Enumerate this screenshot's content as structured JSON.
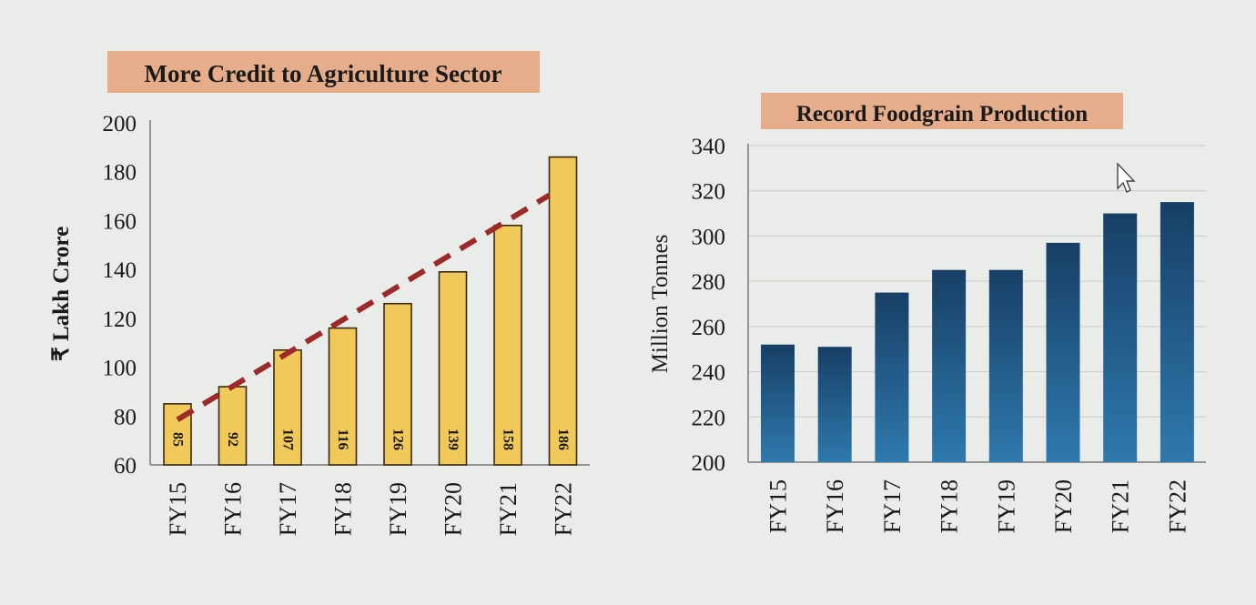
{
  "chart_data": [
    {
      "type": "bar",
      "title": "More Credit to Agriculture Sector",
      "ylabel": "₹ Lakh Crore",
      "xlabel": "",
      "categories": [
        "FY15",
        "FY16",
        "FY17",
        "FY18",
        "FY19",
        "FY20",
        "FY21",
        "FY22"
      ],
      "values": [
        85,
        92,
        107,
        116,
        126,
        139,
        158,
        186
      ],
      "data_labels": [
        "85",
        "92",
        "107",
        "116",
        "126",
        "139",
        "158",
        "186"
      ],
      "ylim": [
        60,
        200
      ],
      "yticks": [
        "60",
        "80",
        "100",
        "120",
        "140",
        "160",
        "180",
        "200"
      ],
      "trendline": {
        "style": "dashed",
        "color": "#9c2a2a"
      },
      "bar_color": "#f0c95a",
      "grid": false
    },
    {
      "type": "bar",
      "title": "Record Foodgrain Production",
      "ylabel": "Million Tonnes",
      "xlabel": "",
      "categories": [
        "FY15",
        "FY16",
        "FY17",
        "FY18",
        "FY19",
        "FY20",
        "FY21",
        "FY22"
      ],
      "values": [
        252,
        251,
        275,
        285,
        285,
        297,
        310,
        315
      ],
      "ylim": [
        200,
        340
      ],
      "yticks": [
        "200",
        "220",
        "240",
        "260",
        "280",
        "300",
        "320",
        "340"
      ],
      "bar_color": "#1f5f8f",
      "grid": true
    }
  ]
}
